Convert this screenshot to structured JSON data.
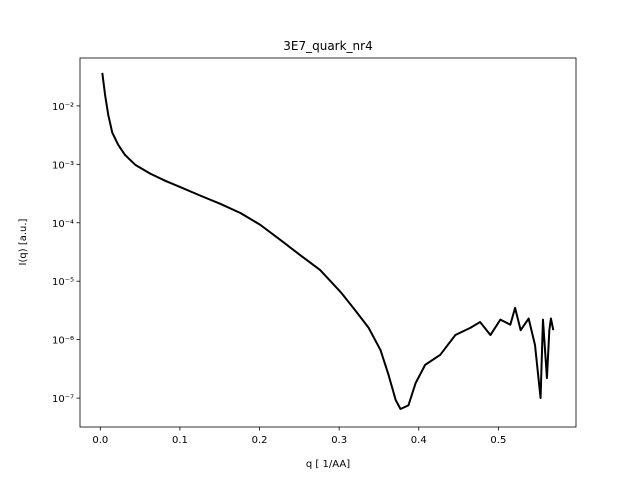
{
  "chart_data": {
    "type": "line",
    "title": "3E7_quark_nr4",
    "x_label": "q [ 1/AA]",
    "y_label": "I(q) [a.u.]",
    "log_y": true,
    "grid": false,
    "x": [
      0.0025,
      0.006,
      0.01,
      0.015,
      0.0226,
      0.031,
      0.044,
      0.063,
      0.082,
      0.1,
      0.126,
      0.151,
      0.176,
      0.201,
      0.226,
      0.251,
      0.276,
      0.302,
      0.32,
      0.337,
      0.352,
      0.362,
      0.371,
      0.377,
      0.387,
      0.396,
      0.408,
      0.427,
      0.446,
      0.465,
      0.477,
      0.49,
      0.5025,
      0.515,
      0.521,
      0.528,
      0.538,
      0.546,
      0.553,
      0.556,
      0.561,
      0.564,
      0.566,
      0.569
    ],
    "series": [
      {
        "name": "I(q)",
        "color": "#000000",
        "values": [
          0.0367,
          0.0154,
          0.007,
          0.0035,
          0.00215,
          0.00145,
          0.00098,
          0.00069,
          0.00052,
          0.00041,
          0.00029,
          0.00021,
          0.000147,
          9.2e-05,
          5.1e-05,
          2.8e-05,
          1.56e-05,
          6.5e-06,
          3.2e-06,
          1.6e-06,
          6.6e-07,
          2.5e-07,
          9.3e-08,
          6.5e-08,
          7.5e-08,
          1.8e-07,
          3.7e-07,
          5.5e-07,
          1.2e-06,
          1.6e-06,
          2e-06,
          1.2e-06,
          2.2e-06,
          1.8e-06,
          3.5e-06,
          1.45e-06,
          2.3e-06,
          8.1e-07,
          1e-07,
          2.2e-06,
          2.2e-07,
          1.45e-06,
          2.3e-06,
          1.45e-06
        ]
      }
    ],
    "xlim": [
      -0.0255,
      0.5975
    ],
    "ylim": [
      3.2e-08,
      0.066
    ],
    "xticks": [
      {
        "value": 0,
        "label": "0.0"
      },
      0.1,
      0.2,
      0.3,
      0.4,
      0.5
    ],
    "yticks": [
      {
        "value": 1e-07,
        "label": "10⁻⁷"
      },
      {
        "value": 1e-06,
        "label": "10⁻⁶"
      },
      {
        "value": 1e-05,
        "label": "10⁻⁵"
      },
      {
        "value": 0.0001,
        "label": "10⁻⁴"
      },
      {
        "value": 0.001,
        "label": "10⁻³"
      },
      {
        "value": 0.01,
        "label": "10⁻²"
      }
    ]
  }
}
